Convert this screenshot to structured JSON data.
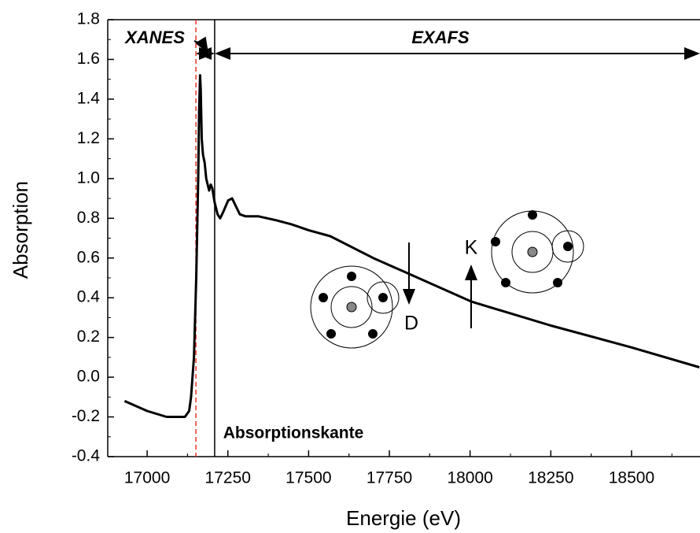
{
  "chart_data": {
    "type": "line",
    "x_label": "Energie (eV)",
    "y_label": "Absorption",
    "x": [
      16930,
      17000,
      17060,
      17117,
      17130,
      17136,
      17145,
      17152,
      17158,
      17161,
      17164,
      17166,
      17169,
      17173,
      17178,
      17183,
      17192,
      17197,
      17202,
      17209,
      17218,
      17226,
      17235,
      17251,
      17263,
      17275,
      17287,
      17305,
      17324,
      17345,
      17400,
      17446,
      17500,
      17567,
      17700,
      17811,
      18005,
      18250,
      18500,
      18710
    ],
    "values": [
      -0.12,
      -0.17,
      -0.2,
      -0.2,
      -0.17,
      -0.1,
      0.1,
      0.5,
      1.0,
      1.35,
      1.52,
      1.45,
      1.2,
      1.12,
      1.08,
      1.0,
      0.94,
      0.97,
      0.95,
      0.88,
      0.82,
      0.8,
      0.83,
      0.89,
      0.9,
      0.86,
      0.82,
      0.81,
      0.81,
      0.81,
      0.79,
      0.77,
      0.74,
      0.71,
      0.6,
      0.52,
      0.38,
      0.26,
      0.15,
      0.05
    ],
    "color": "#000000",
    "xlim": [
      16878,
      18712
    ],
    "ylim": [
      -0.4,
      1.8
    ],
    "xticks": [
      17000,
      17250,
      17500,
      17750,
      18000,
      18250,
      18500
    ],
    "yticks": [
      -0.4,
      -0.2,
      {
        "value": 0,
        "label": "0.0"
      },
      0.2,
      0.4,
      0.6,
      0.8,
      {
        "value": 1,
        "label": "1.0"
      },
      1.2,
      1.4,
      1.6,
      1.8
    ],
    "reference_lines": [
      {
        "x": 17151,
        "color": "#e8302a",
        "dashed": true
      },
      {
        "x": 17209,
        "color": "#000000",
        "dashed": false
      }
    ],
    "annotations": {
      "xanes": "XANES",
      "exafs": "EXAFS",
      "edge": "Absorptionskante",
      "k": "K",
      "d": "D"
    }
  }
}
